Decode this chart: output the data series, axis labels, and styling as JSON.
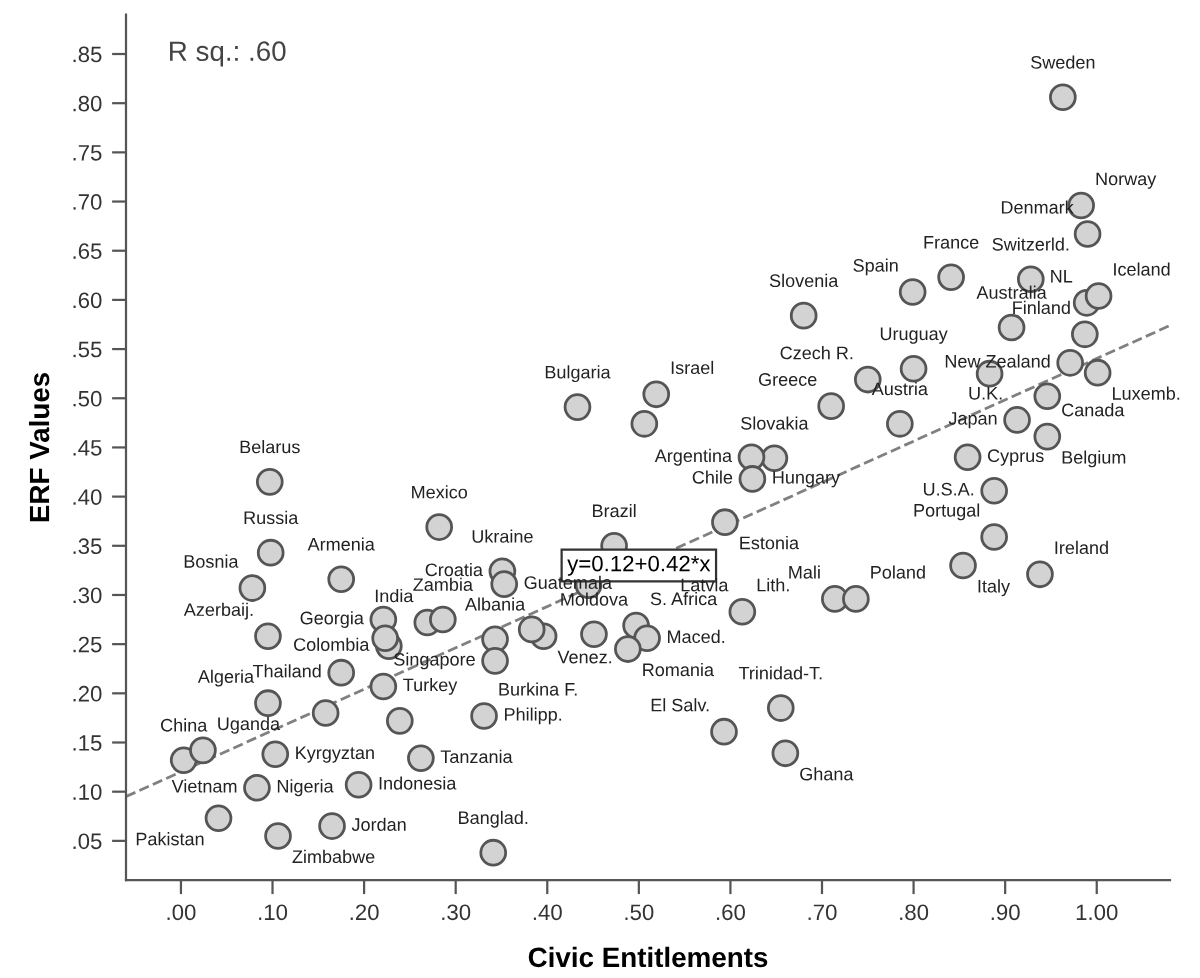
{
  "chart_data": {
    "type": "scatter",
    "xlabel": "Civic Entitlements",
    "ylabel": "ERF Values",
    "xlim": [
      -0.06,
      1.08
    ],
    "ylim": [
      0.01,
      0.89
    ],
    "xticks": [
      {
        "value": 0,
        "label": ".00"
      },
      {
        "value": 0.1,
        "label": ".10"
      },
      {
        "value": 0.2,
        "label": ".20"
      },
      {
        "value": 0.3,
        "label": ".30"
      },
      {
        "value": 0.4,
        "label": ".40"
      },
      {
        "value": 0.5,
        "label": ".50"
      },
      {
        "value": 0.6,
        "label": ".60"
      },
      {
        "value": 0.7,
        "label": ".70"
      },
      {
        "value": 0.8,
        "label": ".80"
      },
      {
        "value": 0.9,
        "label": ".90"
      },
      {
        "value": 1.0,
        "label": "1.00"
      }
    ],
    "yticks": [
      {
        "value": 0.05,
        "label": ".05"
      },
      {
        "value": 0.1,
        "label": ".10"
      },
      {
        "value": 0.15,
        "label": ".15"
      },
      {
        "value": 0.2,
        "label": ".20"
      },
      {
        "value": 0.25,
        "label": ".25"
      },
      {
        "value": 0.3,
        "label": ".30"
      },
      {
        "value": 0.35,
        "label": ".35"
      },
      {
        "value": 0.4,
        "label": ".40"
      },
      {
        "value": 0.45,
        "label": ".45"
      },
      {
        "value": 0.5,
        "label": ".50"
      },
      {
        "value": 0.55,
        "label": ".55"
      },
      {
        "value": 0.6,
        "label": ".60"
      },
      {
        "value": 0.65,
        "label": ".65"
      },
      {
        "value": 0.7,
        "label": ".70"
      },
      {
        "value": 0.75,
        "label": ".75"
      },
      {
        "value": 0.8,
        "label": ".80"
      },
      {
        "value": 0.85,
        "label": ".85"
      }
    ],
    "grid": false,
    "marker": "circle",
    "series": [
      {
        "color": "#d3d3d3",
        "x": [
          0.097,
          0.098,
          0.078,
          0.175,
          0.282,
          0.095,
          0.221,
          0.227,
          0.223,
          0.269,
          0.286,
          0.343,
          0.343,
          0.351,
          0.353,
          0.473,
          0.451,
          0.396,
          0.383,
          0.445,
          0.095,
          0.175,
          0.158,
          0.221,
          0.239,
          0.331,
          0.003,
          0.024,
          0.103,
          0.083,
          0.194,
          0.262,
          0.041,
          0.165,
          0.106,
          0.341,
          0.963,
          0.983,
          0.99,
          0.799,
          0.841,
          0.928,
          0.989,
          1.002,
          0.987,
          0.68,
          0.907,
          0.8,
          0.883,
          0.971,
          1.001,
          0.75,
          0.71,
          0.519,
          0.506,
          0.433,
          0.785,
          0.913,
          0.946,
          0.946,
          0.859,
          0.888,
          0.648,
          0.623,
          0.624,
          0.888,
          0.854,
          0.938,
          0.594,
          0.613,
          0.714,
          0.737,
          0.497,
          0.509,
          0.488,
          0.593,
          0.655,
          0.66
        ],
        "values": [
          0.415,
          0.343,
          0.307,
          0.316,
          0.369,
          0.258,
          0.275,
          0.248,
          0.256,
          0.272,
          0.275,
          0.255,
          0.233,
          0.324,
          0.311,
          0.35,
          0.26,
          0.258,
          0.265,
          0.31,
          0.19,
          0.221,
          0.18,
          0.207,
          0.172,
          0.177,
          0.132,
          0.142,
          0.138,
          0.104,
          0.107,
          0.134,
          0.073,
          0.065,
          0.055,
          0.038,
          0.806,
          0.696,
          0.667,
          0.608,
          0.623,
          0.621,
          0.597,
          0.604,
          0.565,
          0.584,
          0.572,
          0.53,
          0.525,
          0.536,
          0.526,
          0.519,
          0.492,
          0.504,
          0.474,
          0.491,
          0.474,
          0.478,
          0.502,
          0.461,
          0.44,
          0.406,
          0.439,
          0.44,
          0.418,
          0.359,
          0.33,
          0.321,
          0.374,
          0.283,
          0.296,
          0.296,
          0.269,
          0.256,
          0.245,
          0.161,
          0.185,
          0.139
        ]
      },
      {
        "type": "line",
        "color": "#808080",
        "line_style": "dashed",
        "marker": "none",
        "x": [
          -0.06,
          1.08
        ],
        "values": [
          0.095,
          0.574
        ]
      }
    ],
    "annotations": [
      "R sq.: .60",
      {
        "text": "y=0.12+0.42*x",
        "x": 0.5,
        "y": 0.33
      },
      {
        "text": "Belarus",
        "x": 0.097,
        "y": 0.415
      },
      {
        "text": "Russia",
        "x": 0.098,
        "y": 0.343
      },
      {
        "text": "Bosnia",
        "x": 0.078,
        "y": 0.307
      },
      {
        "text": "Armenia",
        "x": 0.175,
        "y": 0.316
      },
      {
        "text": "Mexico",
        "x": 0.282,
        "y": 0.369
      },
      {
        "text": "Azerbaij.",
        "x": 0.095,
        "y": 0.258
      },
      {
        "text": "Georgia",
        "x": 0.221,
        "y": 0.275
      },
      {
        "text": "Colombia",
        "x": 0.227,
        "y": 0.248
      },
      {
        "text": "India",
        "x": 0.269,
        "y": 0.272
      },
      {
        "text": "Zambia",
        "x": 0.286,
        "y": 0.275
      },
      {
        "text": "Albania",
        "x": 0.343,
        "y": 0.255
      },
      {
        "text": "Singapore",
        "x": 0.343,
        "y": 0.233
      },
      {
        "text": "Ukraine",
        "x": 0.351,
        "y": 0.324
      },
      {
        "text": "Croatia",
        "x": 0.351,
        "y": 0.324
      },
      {
        "text": "Guatemala",
        "x": 0.353,
        "y": 0.311
      },
      {
        "text": "Brazil",
        "x": 0.473,
        "y": 0.35
      },
      {
        "text": "Moldova",
        "x": 0.451,
        "y": 0.26
      },
      {
        "text": "Venez.",
        "x": 0.396,
        "y": 0.258
      },
      {
        "text": "Algeria",
        "x": 0.095,
        "y": 0.19
      },
      {
        "text": "Thailand",
        "x": 0.175,
        "y": 0.221
      },
      {
        "text": "Turkey",
        "x": 0.221,
        "y": 0.207
      },
      {
        "text": "Philipp.",
        "x": 0.331,
        "y": 0.177
      },
      {
        "text": "Burkina F.",
        "x": 0.331,
        "y": 0.177
      },
      {
        "text": "China",
        "x": 0.003,
        "y": 0.132
      },
      {
        "text": "Uganda",
        "x": 0.024,
        "y": 0.142
      },
      {
        "text": "Kyrgyztan",
        "x": 0.103,
        "y": 0.138
      },
      {
        "text": "Vietnam",
        "x": 0.083,
        "y": 0.104
      },
      {
        "text": "Nigeria",
        "x": 0.083,
        "y": 0.104
      },
      {
        "text": "Indonesia",
        "x": 0.194,
        "y": 0.107
      },
      {
        "text": "Tanzania",
        "x": 0.262,
        "y": 0.134
      },
      {
        "text": "Pakistan",
        "x": 0.041,
        "y": 0.073
      },
      {
        "text": "Jordan",
        "x": 0.165,
        "y": 0.065
      },
      {
        "text": "Zimbabwe",
        "x": 0.106,
        "y": 0.055
      },
      {
        "text": "Banglad.",
        "x": 0.341,
        "y": 0.038
      },
      {
        "text": "Sweden",
        "x": 0.963,
        "y": 0.806
      },
      {
        "text": "Norway",
        "x": 0.983,
        "y": 0.696
      },
      {
        "text": "Denmark",
        "x": 0.99,
        "y": 0.667
      },
      {
        "text": "Spain",
        "x": 0.799,
        "y": 0.608
      },
      {
        "text": "France",
        "x": 0.841,
        "y": 0.623
      },
      {
        "text": "Switzerld.",
        "x": 0.928,
        "y": 0.621
      },
      {
        "text": "NL",
        "x": 0.989,
        "y": 0.597
      },
      {
        "text": "Iceland",
        "x": 1.002,
        "y": 0.604
      },
      {
        "text": "Finland",
        "x": 0.987,
        "y": 0.565
      },
      {
        "text": "Slovenia",
        "x": 0.68,
        "y": 0.584
      },
      {
        "text": "Australia",
        "x": 0.907,
        "y": 0.572
      },
      {
        "text": "Uruguay",
        "x": 0.8,
        "y": 0.53
      },
      {
        "text": "New Zealand",
        "x": 0.971,
        "y": 0.536
      },
      {
        "text": "Luxemb.",
        "x": 1.001,
        "y": 0.526
      },
      {
        "text": "Czech R.",
        "x": 0.75,
        "y": 0.519
      },
      {
        "text": "Greece",
        "x": 0.71,
        "y": 0.492
      },
      {
        "text": "Israel",
        "x": 0.519,
        "y": 0.504
      },
      {
        "text": "Bulgaria",
        "x": 0.433,
        "y": 0.491
      },
      {
        "text": "Austria",
        "x": 0.785,
        "y": 0.474
      },
      {
        "text": "U.K.",
        "x": 0.913,
        "y": 0.478
      },
      {
        "text": "Japan",
        "x": 0.913,
        "y": 0.478
      },
      {
        "text": "Canada",
        "x": 0.946,
        "y": 0.461
      },
      {
        "text": "Belgium",
        "x": 0.946,
        "y": 0.461
      },
      {
        "text": "Cyprus",
        "x": 0.859,
        "y": 0.44
      },
      {
        "text": "U.S.A.",
        "x": 0.888,
        "y": 0.406
      },
      {
        "text": "Slovakia",
        "x": 0.648,
        "y": 0.439
      },
      {
        "text": "Argentina",
        "x": 0.623,
        "y": 0.44
      },
      {
        "text": "Chile",
        "x": 0.624,
        "y": 0.418
      },
      {
        "text": "Hungary",
        "x": 0.624,
        "y": 0.418
      },
      {
        "text": "Portugal",
        "x": 0.888,
        "y": 0.359
      },
      {
        "text": "Italy",
        "x": 0.854,
        "y": 0.33
      },
      {
        "text": "Ireland",
        "x": 0.938,
        "y": 0.321
      },
      {
        "text": "Estonia",
        "x": 0.594,
        "y": 0.374
      },
      {
        "text": "Latvia",
        "x": 0.613,
        "y": 0.283
      },
      {
        "text": "Lith.",
        "x": 0.613,
        "y": 0.283
      },
      {
        "text": "Mali",
        "x": 0.714,
        "y": 0.296
      },
      {
        "text": "Poland",
        "x": 0.737,
        "y": 0.296
      },
      {
        "text": "S. Africa",
        "x": 0.497,
        "y": 0.269
      },
      {
        "text": "Maced.",
        "x": 0.509,
        "y": 0.256
      },
      {
        "text": "Romania",
        "x": 0.488,
        "y": 0.245
      },
      {
        "text": "El Salv.",
        "x": 0.593,
        "y": 0.161
      },
      {
        "text": "Trinidad-T.",
        "x": 0.655,
        "y": 0.185
      },
      {
        "text": "Ghana",
        "x": 0.66,
        "y": 0.139
      }
    ]
  }
}
